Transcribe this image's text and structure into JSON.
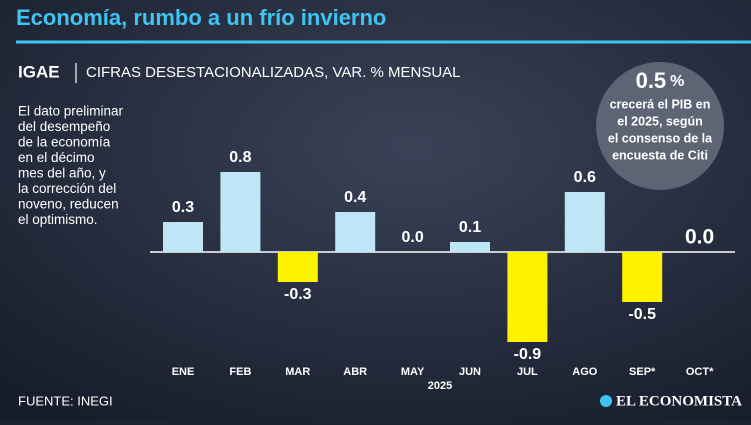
{
  "chart_data": {
    "type": "bar",
    "title": "Economía, rumbo a un frío invierno",
    "subtitle_lead": "IGAE",
    "subtitle": "CIFRAS DESESTACIONALIZADAS, VAR. % MENSUAL",
    "description": [
      "El dato preliminar",
      "del desempeño",
      "de la economía",
      "en el décimo",
      "mes del año, y",
      "la corrección del",
      "noveno, reducen",
      "el optimismo."
    ],
    "categories": [
      "ENE",
      "FEB",
      "MAR",
      "ABR",
      "MAY",
      "JUN",
      "JUL",
      "AGO",
      "SEP*",
      "OCT*"
    ],
    "values": [
      0.3,
      0.8,
      -0.3,
      0.4,
      0,
      0.1,
      -0.9,
      0.6,
      -0.5,
      0
    ],
    "value_labels": [
      "0.3",
      "0.8",
      "-0.3",
      "0.4",
      "0.0",
      "0.1",
      "-0.9",
      "0.6",
      "-0.5",
      "0.0"
    ],
    "positive_color": "#bfe6f6",
    "negative_color": "#fff200",
    "x_group_label": "2025",
    "callout": {
      "value": 0.5,
      "unit": "%",
      "lines": [
        "crecerá el PIB en",
        "el 2025, según",
        "el consenso de la",
        "encuesta de Citi"
      ]
    },
    "source": "FUENTE: INEGI",
    "brand": "EL ECONOMISTA"
  }
}
